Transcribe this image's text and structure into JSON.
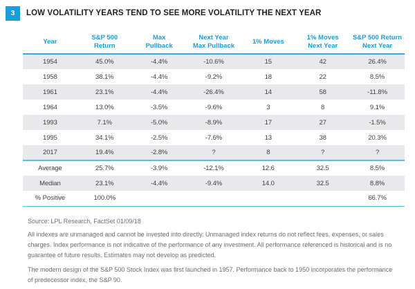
{
  "figure": {
    "number": "3",
    "title": "LOW VOLATILITY YEARS TEND TO SEE MORE VOLATILITY THE NEXT YEAR"
  },
  "chart_data": {
    "type": "table",
    "title": "LOW VOLATILITY YEARS TEND TO SEE MORE VOLATILITY THE NEXT YEAR",
    "headers": [
      "Year",
      "S&P 500\nReturn",
      "Max\nPullback",
      "Next Year\nMax Pullback",
      "1% Moves",
      "1% Moves\nNext Year",
      "S&P 500 Return\nNext Year"
    ],
    "rows": [
      [
        "1954",
        "45.0%",
        "-4.4%",
        "-10.6%",
        "15",
        "42",
        "26.4%"
      ],
      [
        "1958",
        "38.1%",
        "-4.4%",
        "-9.2%",
        "18",
        "22",
        "8.5%"
      ],
      [
        "1961",
        "23.1%",
        "-4.4%",
        "-26.4%",
        "14",
        "58",
        "-11.8%"
      ],
      [
        "1964",
        "13.0%",
        "-3.5%",
        "-9.6%",
        "3",
        "8",
        "9.1%"
      ],
      [
        "1993",
        "7.1%",
        "-5.0%",
        "-8.9%",
        "17",
        "27",
        "-1.5%"
      ],
      [
        "1995",
        "34.1%",
        "-2.5%",
        "-7.6%",
        "13",
        "38",
        "20.3%"
      ],
      [
        "2017",
        "19.4%",
        "-2.8%",
        "?",
        "8",
        "?",
        "?"
      ]
    ],
    "summary_rows": [
      [
        "Average",
        "25.7%",
        "-3.9%",
        "-12.1%",
        "12.6",
        "32.5",
        "8.5%"
      ],
      [
        "Median",
        "23.1%",
        "-4.4%",
        "-9.4%",
        "14.0",
        "32.5",
        "8.8%"
      ],
      [
        "% Positive",
        "100.0%",
        "",
        "",
        "",
        "",
        "66.7%"
      ]
    ]
  },
  "footer": {
    "source": "Source: LPL Research, FactSet   01/09/18",
    "disclaimer1": "All indexes are unmanaged and cannot be invested into directly. Unmanaged index returns do not reflect fees, expenses, or sales charges. Index performance is not indicative of the performance of any investment. All performance referenced is historical and is no guarantee of future results. Estimates may not develop as predicted.",
    "disclaimer2": "The modern design of the S&P 500 Stock Index was first launched in 1957. Performance back to 1950 incorporates the performance of predecessor index, the S&P 90."
  },
  "colors": {
    "accent": "#1E9CD9",
    "row_shade": "#E9E9EB",
    "separator": "#5BBCE4",
    "text": "#404042",
    "footer_text": "#6D6E71"
  }
}
